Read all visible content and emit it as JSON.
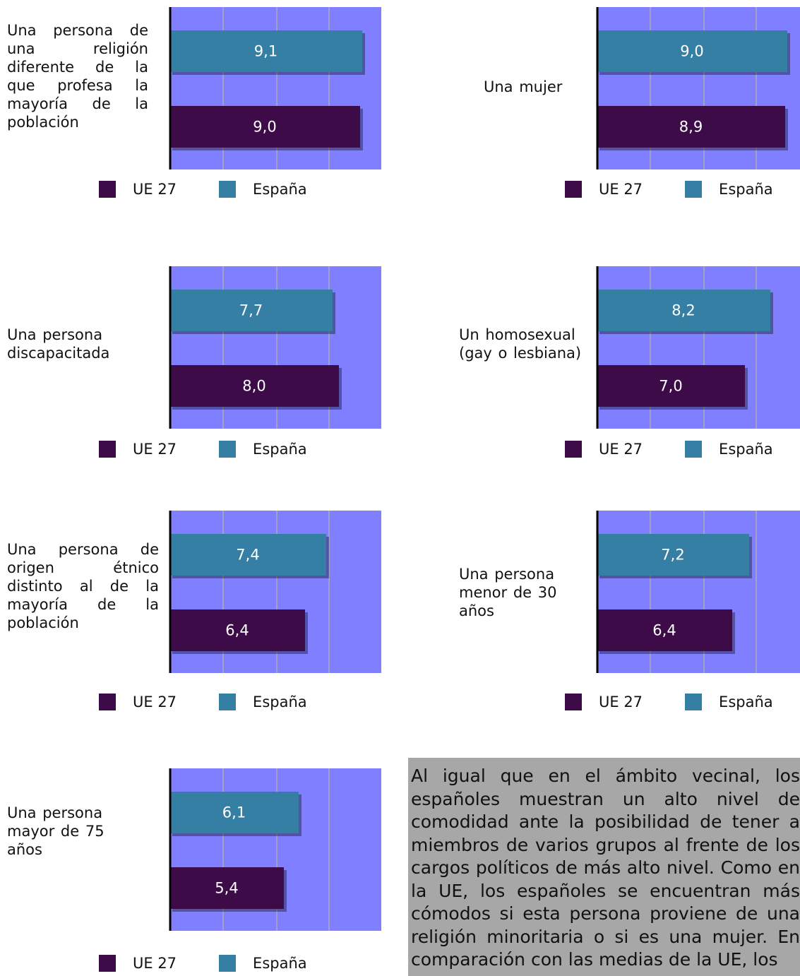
{
  "legend": {
    "ue": "UE 27",
    "es": "España"
  },
  "colors": {
    "ue": "#3d0b47",
    "es": "#347fa3",
    "plot_bg": "#7f7fff",
    "grid": "#a0a0c8",
    "text_bg": "#a7a7a7"
  },
  "chart_data": [
    {
      "type": "bar",
      "orientation": "horizontal",
      "category": "Una persona de una religión diferente de la que profesa la mayoría de la población",
      "series": [
        {
          "name": "España",
          "value": 9.1,
          "label": "9,1"
        },
        {
          "name": "UE 27",
          "value": 9.0,
          "label": "9,0"
        }
      ],
      "xlim": [
        0,
        10
      ]
    },
    {
      "type": "bar",
      "orientation": "horizontal",
      "category": "Una mujer",
      "series": [
        {
          "name": "España",
          "value": 9.0,
          "label": "9,0"
        },
        {
          "name": "UE 27",
          "value": 8.9,
          "label": "8,9"
        }
      ],
      "xlim": [
        0,
        10
      ]
    },
    {
      "type": "bar",
      "orientation": "horizontal",
      "category": "Una persona discapacitada",
      "series": [
        {
          "name": "España",
          "value": 7.7,
          "label": "7,7"
        },
        {
          "name": "UE 27",
          "value": 8.0,
          "label": "8,0"
        }
      ],
      "xlim": [
        0,
        10
      ]
    },
    {
      "type": "bar",
      "orientation": "horizontal",
      "category": "Un homosexual (gay o lesbiana)",
      "series": [
        {
          "name": "España",
          "value": 8.2,
          "label": "8,2"
        },
        {
          "name": "UE 27",
          "value": 7.0,
          "label": "7,0"
        }
      ],
      "xlim": [
        0,
        10
      ]
    },
    {
      "type": "bar",
      "orientation": "horizontal",
      "category": "Una persona de origen étnico distinto al de la mayoría de la población",
      "series": [
        {
          "name": "España",
          "value": 7.4,
          "label": "7,4"
        },
        {
          "name": "UE 27",
          "value": 6.4,
          "label": "6,4"
        }
      ],
      "xlim": [
        0,
        10
      ]
    },
    {
      "type": "bar",
      "orientation": "horizontal",
      "category": "Una persona menor de 30 años",
      "series": [
        {
          "name": "España",
          "value": 7.2,
          "label": "7,2"
        },
        {
          "name": "UE 27",
          "value": 6.4,
          "label": "6,4"
        }
      ],
      "xlim": [
        0,
        10
      ]
    },
    {
      "type": "bar",
      "orientation": "horizontal",
      "category": "Una persona mayor de 75 años",
      "series": [
        {
          "name": "España",
          "value": 6.1,
          "label": "6,1"
        },
        {
          "name": "UE 27",
          "value": 5.4,
          "label": "5,4"
        }
      ],
      "xlim": [
        0,
        10
      ]
    }
  ],
  "commentary": "Al igual que en el ámbito vecinal, los españoles muestran un alto nivel de comodidad ante la posibilidad de tener a miembros de varios grupos al frente de los cargos políticos de más alto nivel. Como en la UE, los españoles se encuentran más cómodos si esta persona proviene de una religión minoritaria o si es una mujer. En comparación con las medias de la UE, los"
}
